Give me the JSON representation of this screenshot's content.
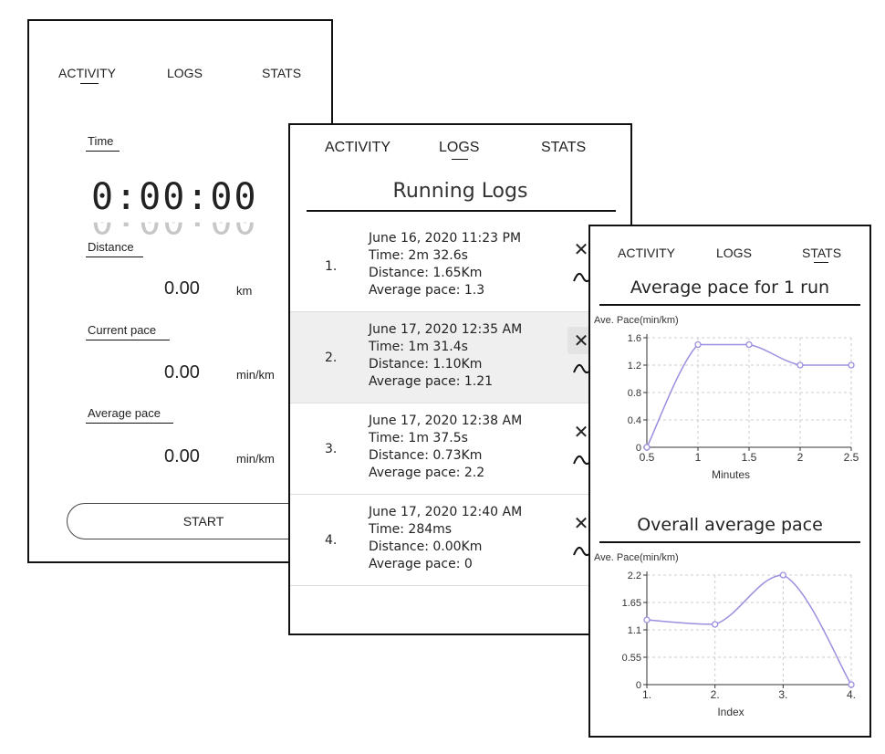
{
  "activity_panel": {
    "tabs": [
      "ACTIVITY",
      "LOGS",
      "STATS"
    ],
    "active_tab": "ACTIVITY",
    "time_label": "Time",
    "timer": "0:00:00",
    "distance_label": "Distance",
    "distance_value": "0.00",
    "distance_unit": "km",
    "current_pace_label": "Current pace",
    "current_pace_value": "0.00",
    "current_pace_unit": "min/km",
    "average_pace_label": "Average pace",
    "average_pace_value": "0.00",
    "average_pace_unit": "min/km",
    "start_label": "START"
  },
  "logs_panel": {
    "tabs": [
      "ACTIVITY",
      "LOGS",
      "STATS"
    ],
    "active_tab": "LOGS",
    "title": "Running Logs",
    "entries": [
      {
        "index": "1.",
        "date": "June 16, 2020 11:23 PM",
        "time": "Time: 2m 32.6s",
        "distance": "Distance: 1.65Km",
        "avg_pace": "Average pace: 1.3"
      },
      {
        "index": "2.",
        "date": "June 17, 2020 12:35 AM",
        "time": "Time: 1m 31.4s",
        "distance": "Distance: 1.10Km",
        "avg_pace": "Average pace: 1.21"
      },
      {
        "index": "3.",
        "date": "June 17, 2020 12:38 AM",
        "time": "Time: 1m 37.5s",
        "distance": "Distance: 0.73Km",
        "avg_pace": "Average pace: 2.2"
      },
      {
        "index": "4.",
        "date": "June 17, 2020 12:40 AM",
        "time": "Time: 284ms",
        "distance": "Distance: 0.00Km",
        "avg_pace": "Average pace: 0"
      }
    ],
    "delete_icon": "close-icon",
    "trend_icon": "trend-icon",
    "highlighted_entry": "2."
  },
  "stats_panel": {
    "tabs": [
      "ACTIVITY",
      "LOGS",
      "STATS"
    ],
    "active_tab": "STATS",
    "colors": {
      "line": "#9b8fe0",
      "grid": "#cccccc"
    }
  },
  "chart_data": [
    {
      "type": "line",
      "title": "Average pace for 1 run",
      "ylabel": "Ave. Pace(min/km)",
      "xlabel": "Minutes",
      "x": [
        0.5,
        1,
        1.5,
        2,
        2.5
      ],
      "y": [
        0,
        1.5,
        1.5,
        1.2,
        1.2
      ],
      "xlim": [
        0.5,
        2.5
      ],
      "ylim": [
        0,
        1.6
      ],
      "xticks": [
        "0.5",
        "1",
        "1.5",
        "2",
        "2.5"
      ],
      "yticks": [
        "0",
        "0.4",
        "0.8",
        "1.2",
        "1.6"
      ],
      "grid": true
    },
    {
      "type": "line",
      "title": "Overall average pace",
      "ylabel": "Ave. Pace(min/km)",
      "xlabel": "Index",
      "categories": [
        "1.",
        "2.",
        "3.",
        "4."
      ],
      "y": [
        1.3,
        1.21,
        2.2,
        0
      ],
      "ylim": [
        0,
        2.2
      ],
      "yticks": [
        "0",
        "0.55",
        "1.1",
        "1.65",
        "2.2"
      ],
      "grid": true
    }
  ]
}
